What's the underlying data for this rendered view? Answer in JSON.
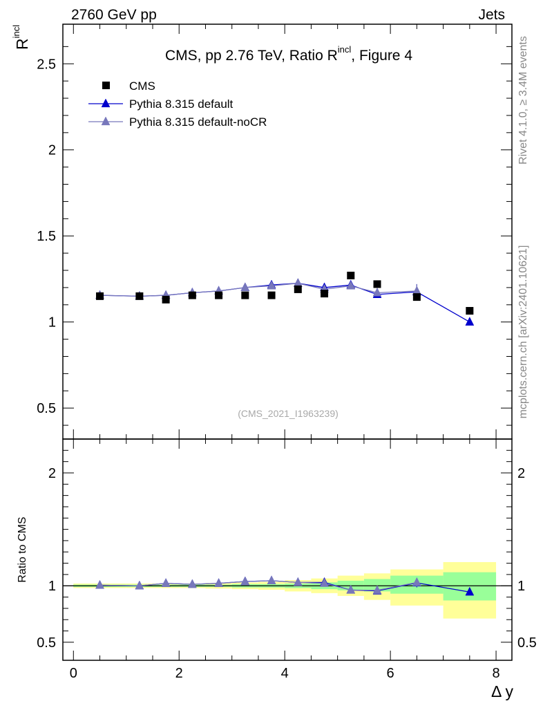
{
  "header": {
    "left": "2760 GeV pp",
    "right": "Jets"
  },
  "side_labels": {
    "rivet": "Rivet 4.1.0, ≥ 3.4M events",
    "mcplots": "mcplots.cern.ch [arXiv:2401.10621]"
  },
  "chart_data": [
    {
      "panel": "main",
      "type": "scatter",
      "title_main": "CMS, pp 2.76 TeV, Ratio R",
      "title_sup": "incl",
      "title_end": ", Figure 4",
      "ylabel": "R",
      "ylabel_sup": "incl",
      "watermark": "(CMS_2021_I1963239)",
      "xlim": [
        -0.2,
        8.3
      ],
      "ylim": [
        0.32,
        2.73
      ],
      "yticks": [
        0.5,
        1,
        1.5,
        2,
        2.5
      ],
      "ytick_labels": [
        "0.5",
        "1",
        "1.5",
        "2",
        "2.5"
      ],
      "legend": {
        "position": "top-left",
        "entries": [
          {
            "label": "CMS",
            "marker": "square",
            "color": "#000000"
          },
          {
            "label": "Pythia 8.315 default",
            "marker": "triangle",
            "color": "#0000cc"
          },
          {
            "label": "Pythia 8.315 default-noCR",
            "marker": "triangle",
            "color": "#7777bb"
          }
        ]
      },
      "series": [
        {
          "name": "CMS",
          "x": [
            0.5,
            1.25,
            1.75,
            2.25,
            2.75,
            3.25,
            3.75,
            4.25,
            4.75,
            5.25,
            5.75,
            6.5,
            7.5
          ],
          "values": [
            1.15,
            1.15,
            1.13,
            1.155,
            1.155,
            1.155,
            1.155,
            1.19,
            1.165,
            1.27,
            1.22,
            1.145,
            1.065
          ]
        },
        {
          "name": "Pythia 8.315 default",
          "x": [
            0.5,
            1.25,
            1.75,
            2.25,
            2.75,
            3.25,
            3.75,
            4.25,
            4.75,
            5.25,
            5.75,
            6.5,
            7.5
          ],
          "values": [
            1.155,
            1.15,
            1.155,
            1.17,
            1.18,
            1.2,
            1.215,
            1.225,
            1.2,
            1.215,
            1.16,
            1.175,
            1.0
          ],
          "errors": [
            0.005,
            0.005,
            0.005,
            0.005,
            0.005,
            0.006,
            0.006,
            0.007,
            0.01,
            0.012,
            0.015,
            0.045,
            0.01
          ]
        },
        {
          "name": "Pythia 8.315 default-noCR",
          "x": [
            0.5,
            1.25,
            1.75,
            2.25,
            2.75,
            3.25,
            3.75,
            4.25,
            4.75,
            5.25,
            5.75,
            6.5
          ],
          "values": [
            1.155,
            1.15,
            1.155,
            1.17,
            1.18,
            1.2,
            1.21,
            1.225,
            1.19,
            1.21,
            1.17,
            1.18
          ],
          "errors": [
            0.005,
            0.005,
            0.005,
            0.005,
            0.005,
            0.006,
            0.006,
            0.007,
            0.01,
            0.012,
            0.015,
            0.04
          ]
        }
      ]
    },
    {
      "panel": "ratio",
      "type": "scatter",
      "ylabel": "Ratio to CMS",
      "xlabel": "Δ y",
      "xlim": [
        -0.2,
        8.3
      ],
      "ylim": [
        0.34,
        2.3
      ],
      "yticks": [
        0.5,
        1,
        2
      ],
      "ytick_labels": [
        "0.5",
        "1",
        "2"
      ],
      "xticks": [
        0,
        2,
        4,
        6,
        8
      ],
      "xtick_labels": [
        "0",
        "2",
        "4",
        "6",
        "8"
      ],
      "bands": {
        "bin_edges": [
          0,
          1,
          1.5,
          2,
          2.5,
          3,
          3.5,
          4,
          4.5,
          5,
          5.5,
          6,
          7,
          8
        ],
        "green": [
          [
            0.99,
            1.01
          ],
          [
            0.99,
            1.01
          ],
          [
            0.99,
            1.01
          ],
          [
            0.99,
            1.01
          ],
          [
            0.99,
            1.01
          ],
          [
            0.985,
            1.015
          ],
          [
            0.985,
            1.015
          ],
          [
            0.98,
            1.02
          ],
          [
            0.97,
            1.03
          ],
          [
            0.96,
            1.045
          ],
          [
            0.95,
            1.06
          ],
          [
            0.93,
            1.09
          ],
          [
            0.87,
            1.12
          ]
        ],
        "yellow": [
          [
            0.98,
            1.02
          ],
          [
            0.98,
            1.02
          ],
          [
            0.98,
            1.02
          ],
          [
            0.98,
            1.02
          ],
          [
            0.975,
            1.025
          ],
          [
            0.97,
            1.03
          ],
          [
            0.965,
            1.035
          ],
          [
            0.95,
            1.05
          ],
          [
            0.935,
            1.065
          ],
          [
            0.91,
            1.09
          ],
          [
            0.875,
            1.11
          ],
          [
            0.825,
            1.145
          ],
          [
            0.71,
            1.21
          ]
        ]
      },
      "series": [
        {
          "name": "Pythia 8.315 default",
          "x": [
            0.5,
            1.25,
            1.75,
            2.25,
            2.75,
            3.25,
            3.75,
            4.25,
            4.75,
            5.25,
            5.75,
            6.5,
            7.5
          ],
          "values": [
            1.005,
            1.0,
            1.022,
            1.013,
            1.022,
            1.038,
            1.045,
            1.03,
            1.03,
            0.962,
            0.955,
            1.026,
            0.945
          ],
          "errors": [
            0.004,
            0.004,
            0.004,
            0.004,
            0.004,
            0.005,
            0.005,
            0.006,
            0.008,
            0.01,
            0.013,
            0.04,
            0.01
          ]
        },
        {
          "name": "Pythia 8.315 default-noCR",
          "x": [
            0.5,
            1.25,
            1.75,
            2.25,
            2.75,
            3.25,
            3.75,
            4.25,
            4.75,
            5.25,
            5.75,
            6.5
          ],
          "values": [
            1.005,
            1.0,
            1.022,
            1.013,
            1.022,
            1.038,
            1.045,
            1.03,
            1.022,
            0.962,
            0.96,
            1.03
          ],
          "errors": [
            0.004,
            0.004,
            0.004,
            0.004,
            0.004,
            0.005,
            0.005,
            0.006,
            0.008,
            0.01,
            0.013,
            0.035
          ]
        }
      ]
    }
  ]
}
